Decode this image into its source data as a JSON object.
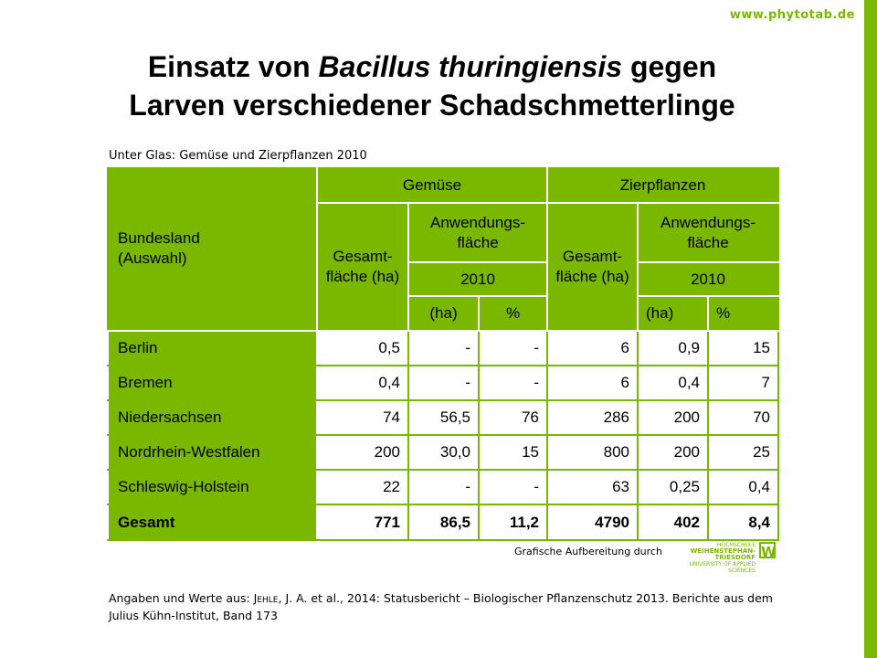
{
  "site": "www.phytotab.de",
  "title": {
    "line1_pre": "Einsatz von ",
    "line1_italic": "Bacillus thuringiensis",
    "line1_post": " gegen",
    "line2": "Larven verschiedener Schadschmetterlinge"
  },
  "subtitle": "Unter Glas: Gemüse und Zierpflanzen 2010",
  "table": {
    "h_bundesland": "Bundesland (Auswahl)",
    "h_gemuese": "Gemüse",
    "h_zier": "Zierpflanzen",
    "h_gesamt": "Gesamt- fläche (ha)",
    "h_anw": "Anwendungs- fläche",
    "h_year": "2010",
    "h_ha": "(ha)",
    "h_pct": "%",
    "rows": [
      {
        "name": "Berlin",
        "v": [
          "0,5",
          "-",
          "-",
          "6",
          "0,9",
          "15"
        ]
      },
      {
        "name": "Bremen",
        "v": [
          "0,4",
          "-",
          "-",
          "6",
          "0,4",
          "7"
        ]
      },
      {
        "name": "Niedersachsen",
        "v": [
          "74",
          "56,5",
          "76",
          "286",
          "200",
          "70"
        ]
      },
      {
        "name": "Nordrhein-Westfalen",
        "v": [
          "200",
          "30,0",
          "15",
          "800",
          "200",
          "25"
        ]
      },
      {
        "name": "Schleswig-Holstein",
        "v": [
          "22",
          "-",
          "-",
          "63",
          "0,25",
          "0,4"
        ]
      },
      {
        "name": "Gesamt",
        "v": [
          "771",
          "86,5",
          "11,2",
          "4790",
          "402",
          "8,4"
        ]
      }
    ]
  },
  "credit": "Grafische Aufbereitung durch",
  "logo": {
    "l1": "HOCHSCHULE",
    "l2": "WEIHENSTEPHAN-TRIESDORF",
    "l3": "UNIVERSITY OF APPLIED SCIENCES",
    "mark": "W"
  },
  "source": {
    "pre": "Angaben und Werte aus: ",
    "author": "Jehle",
    "post": ", J. A. et al., 2014: Statusbericht – Biologischer Pflanzenschutz 2013. Berichte aus dem Julius Kühn-Institut, Band 173"
  },
  "colors": {
    "accent": "#7ab800"
  }
}
